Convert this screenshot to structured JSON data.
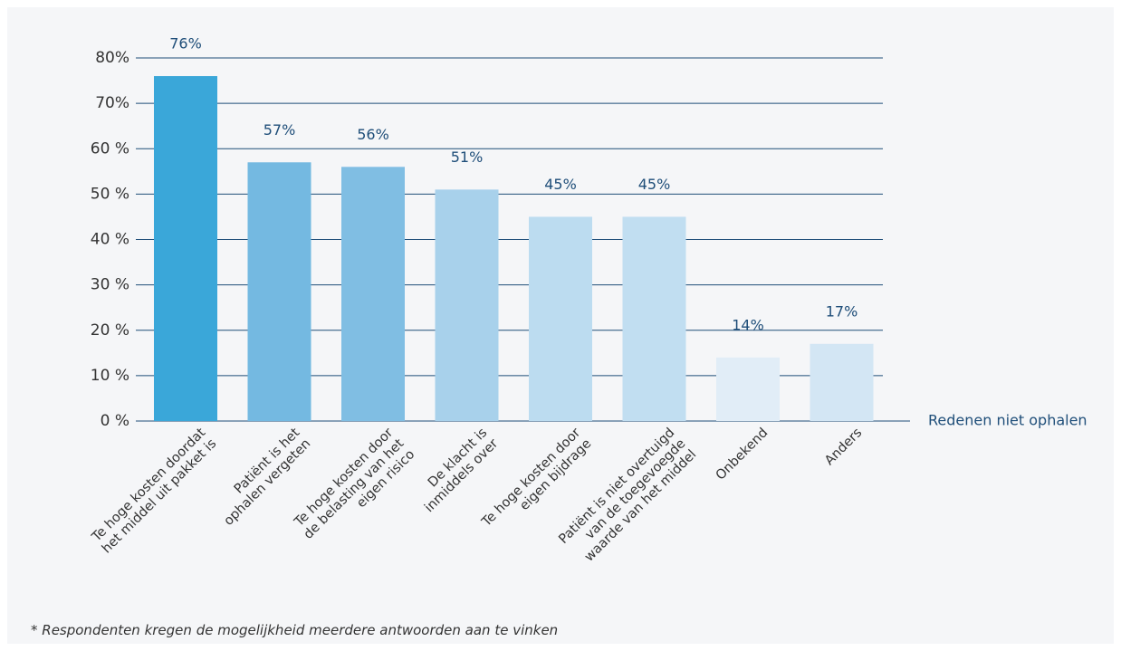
{
  "chart_data": {
    "type": "bar",
    "x_label": "Redenen niet ophalen",
    "footnote": "* Respondenten kregen de mogelijkheid meerdere antwoorden aan te vinken",
    "categories": [
      "Te hoge kosten doordat\nhet middel uit pakket is",
      "Patiënt is het\nophalen vergeten",
      "Te hoge kosten door\nde belasting van het\neigen risico",
      "De klacht is\ninmiddels over",
      "Te hoge kosten door\neigen bijdrage",
      "Patiënt is niet overtuigd\nvan de toegevoegde\nwaarde van het middel",
      "Onbekend",
      "Anders"
    ],
    "values": [
      76,
      57,
      56,
      51,
      45,
      45,
      14,
      17
    ],
    "value_labels": [
      "76%",
      "57%",
      "56%",
      "51%",
      "45%",
      "45%",
      "14%",
      "17%"
    ],
    "colors": [
      "#3aa7d9",
      "#74b9e1",
      "#80bee3",
      "#a8d1eb",
      "#bcdcf0",
      "#c1def1",
      "#e1edf7",
      "#d3e6f4"
    ],
    "ylim": [
      0,
      80
    ],
    "yticks": [
      {
        "value": 0,
        "label": "0 %"
      },
      {
        "value": 10,
        "label": "10 %"
      },
      {
        "value": 20,
        "label": "20 %"
      },
      {
        "value": 30,
        "label": "30 %"
      },
      {
        "value": 40,
        "label": "40 %"
      },
      {
        "value": 50,
        "label": "50 %"
      },
      {
        "value": 60,
        "label": "60 %"
      },
      {
        "value": 70,
        "label": "70%"
      },
      {
        "value": 80,
        "label": "80%"
      }
    ],
    "grid": true
  }
}
